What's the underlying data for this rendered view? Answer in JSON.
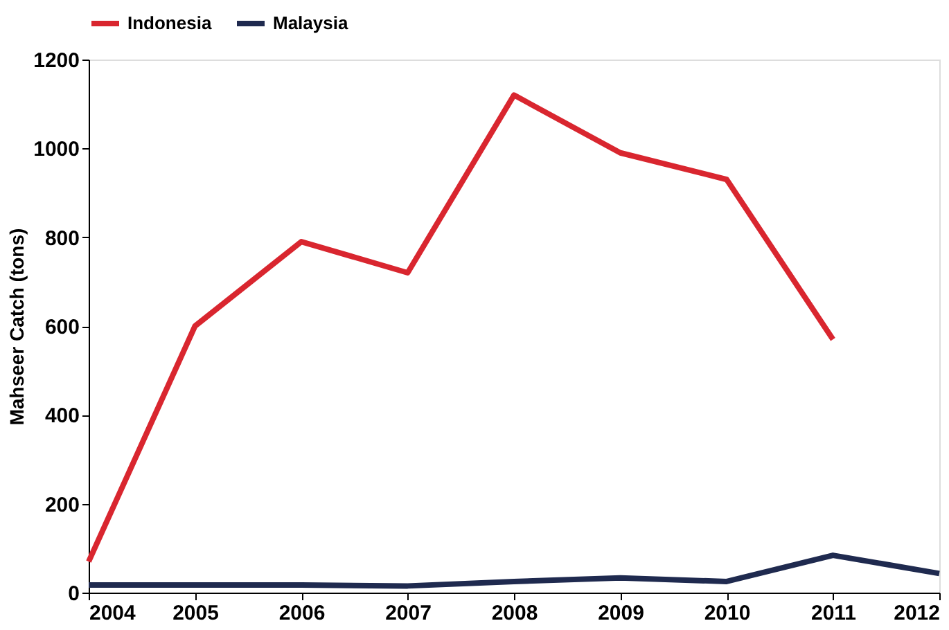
{
  "chart_data": {
    "type": "line",
    "ylabel": "Mahseer Catch (tons)",
    "categories": [
      "2004",
      "2005",
      "2006",
      "2007",
      "2008",
      "2009",
      "2010",
      "2011",
      "2012"
    ],
    "series": [
      {
        "name": "Indonesia",
        "color": "#d9262f",
        "values": [
          70,
          600,
          790,
          720,
          1120,
          990,
          930,
          570,
          null
        ]
      },
      {
        "name": "Malaysia",
        "color": "#1f2a4f",
        "values": [
          17,
          17,
          17,
          15,
          25,
          33,
          25,
          84,
          43
        ]
      }
    ],
    "ylim": [
      0,
      1200
    ],
    "yticks": [
      0,
      200,
      400,
      600,
      800,
      1000,
      1200
    ],
    "grid": false,
    "legend": "top",
    "marker": "none",
    "line_style": "solid"
  }
}
